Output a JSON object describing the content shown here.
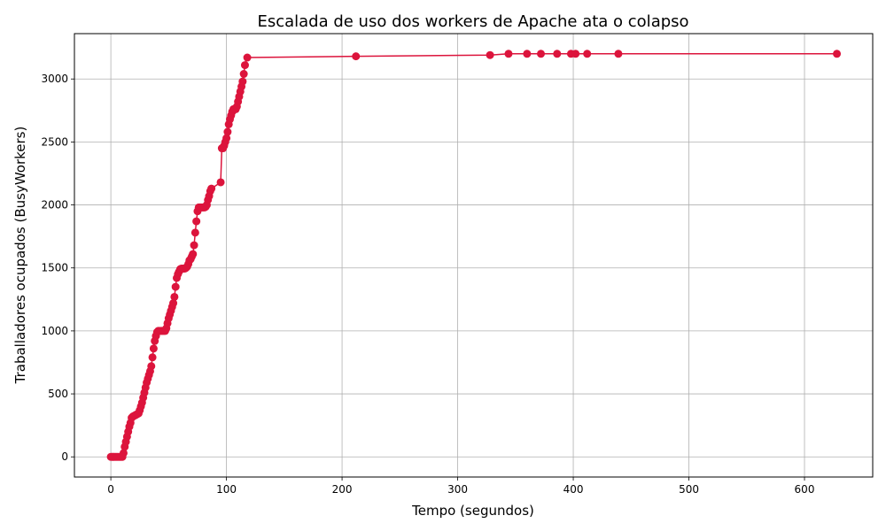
{
  "chart_data": {
    "type": "line",
    "title": "Escalada de uso dos workers de Apache ata o colapso",
    "xlabel": "Tempo (segundos)",
    "ylabel": "Traballadores ocupados (BusyWorkers)",
    "xlim": [
      -31.5,
      659
    ],
    "ylim": [
      -160,
      3360
    ],
    "xticks": [
      0,
      100,
      200,
      300,
      400,
      500,
      600
    ],
    "yticks": [
      0,
      500,
      1000,
      1500,
      2000,
      2500,
      3000
    ],
    "grid": true,
    "colors": {
      "series": "#dc143c",
      "grid": "#b0b0b0"
    },
    "series": [
      {
        "marker": "circle",
        "points": [
          [
            0,
            0
          ],
          [
            1,
            0
          ],
          [
            2,
            0
          ],
          [
            3,
            0
          ],
          [
            4,
            0
          ],
          [
            5,
            0
          ],
          [
            6,
            0
          ],
          [
            7,
            0
          ],
          [
            8,
            0
          ],
          [
            9,
            0
          ],
          [
            10,
            0
          ],
          [
            11,
            30
          ],
          [
            12,
            80
          ],
          [
            13,
            120
          ],
          [
            14,
            160
          ],
          [
            15,
            200
          ],
          [
            16,
            240
          ],
          [
            17,
            270
          ],
          [
            18,
            310
          ],
          [
            19,
            320
          ],
          [
            20,
            325
          ],
          [
            21,
            330
          ],
          [
            22,
            335
          ],
          [
            23,
            340
          ],
          [
            24,
            345
          ],
          [
            25,
            370
          ],
          [
            26,
            400
          ],
          [
            27,
            430
          ],
          [
            28,
            470
          ],
          [
            29,
            510
          ],
          [
            30,
            550
          ],
          [
            31,
            590
          ],
          [
            32,
            620
          ],
          [
            33,
            650
          ],
          [
            34,
            680
          ],
          [
            35,
            720
          ],
          [
            36,
            790
          ],
          [
            37,
            860
          ],
          [
            38,
            920
          ],
          [
            39,
            960
          ],
          [
            40,
            990
          ],
          [
            41,
            1000
          ],
          [
            42,
            1000
          ],
          [
            43,
            1000
          ],
          [
            44,
            1000
          ],
          [
            45,
            1000
          ],
          [
            46,
            1000
          ],
          [
            47,
            1000
          ],
          [
            48,
            1020
          ],
          [
            49,
            1060
          ],
          [
            50,
            1100
          ],
          [
            51,
            1130
          ],
          [
            52,
            1160
          ],
          [
            53,
            1190
          ],
          [
            54,
            1220
          ],
          [
            55,
            1270
          ],
          [
            56,
            1350
          ],
          [
            57,
            1420
          ],
          [
            58,
            1450
          ],
          [
            59,
            1470
          ],
          [
            60,
            1490
          ],
          [
            61,
            1495
          ],
          [
            62,
            1495
          ],
          [
            63,
            1495
          ],
          [
            64,
            1495
          ],
          [
            65,
            1500
          ],
          [
            66,
            1510
          ],
          [
            67,
            1530
          ],
          [
            68,
            1560
          ],
          [
            69,
            1570
          ],
          [
            70,
            1590
          ],
          [
            71,
            1610
          ],
          [
            72,
            1680
          ],
          [
            73,
            1780
          ],
          [
            74,
            1870
          ],
          [
            75,
            1950
          ],
          [
            76,
            1980
          ],
          [
            77,
            1980
          ],
          [
            78,
            1980
          ],
          [
            79,
            1980
          ],
          [
            80,
            1980
          ],
          [
            81,
            1980
          ],
          [
            82,
            1985
          ],
          [
            83,
            2000
          ],
          [
            84,
            2040
          ],
          [
            85,
            2070
          ],
          [
            86,
            2110
          ],
          [
            87,
            2130
          ],
          [
            95,
            2180
          ],
          [
            96,
            2450
          ],
          [
            97,
            2450
          ],
          [
            98,
            2470
          ],
          [
            99,
            2500
          ],
          [
            100,
            2530
          ],
          [
            101,
            2580
          ],
          [
            102,
            2640
          ],
          [
            103,
            2680
          ],
          [
            104,
            2710
          ],
          [
            105,
            2740
          ],
          [
            106,
            2760
          ],
          [
            107,
            2760
          ],
          [
            108,
            2760
          ],
          [
            109,
            2780
          ],
          [
            110,
            2820
          ],
          [
            111,
            2860
          ],
          [
            112,
            2900
          ],
          [
            113,
            2940
          ],
          [
            114,
            2980
          ],
          [
            115,
            3040
          ],
          [
            116,
            3110
          ],
          [
            118,
            3170
          ],
          [
            212,
            3180
          ],
          [
            328,
            3190
          ],
          [
            344,
            3200
          ],
          [
            360,
            3200
          ],
          [
            372,
            3200
          ],
          [
            386,
            3200
          ],
          [
            398,
            3200
          ],
          [
            402,
            3200
          ],
          [
            412,
            3200
          ],
          [
            439,
            3200
          ],
          [
            628,
            3200
          ]
        ]
      }
    ]
  }
}
